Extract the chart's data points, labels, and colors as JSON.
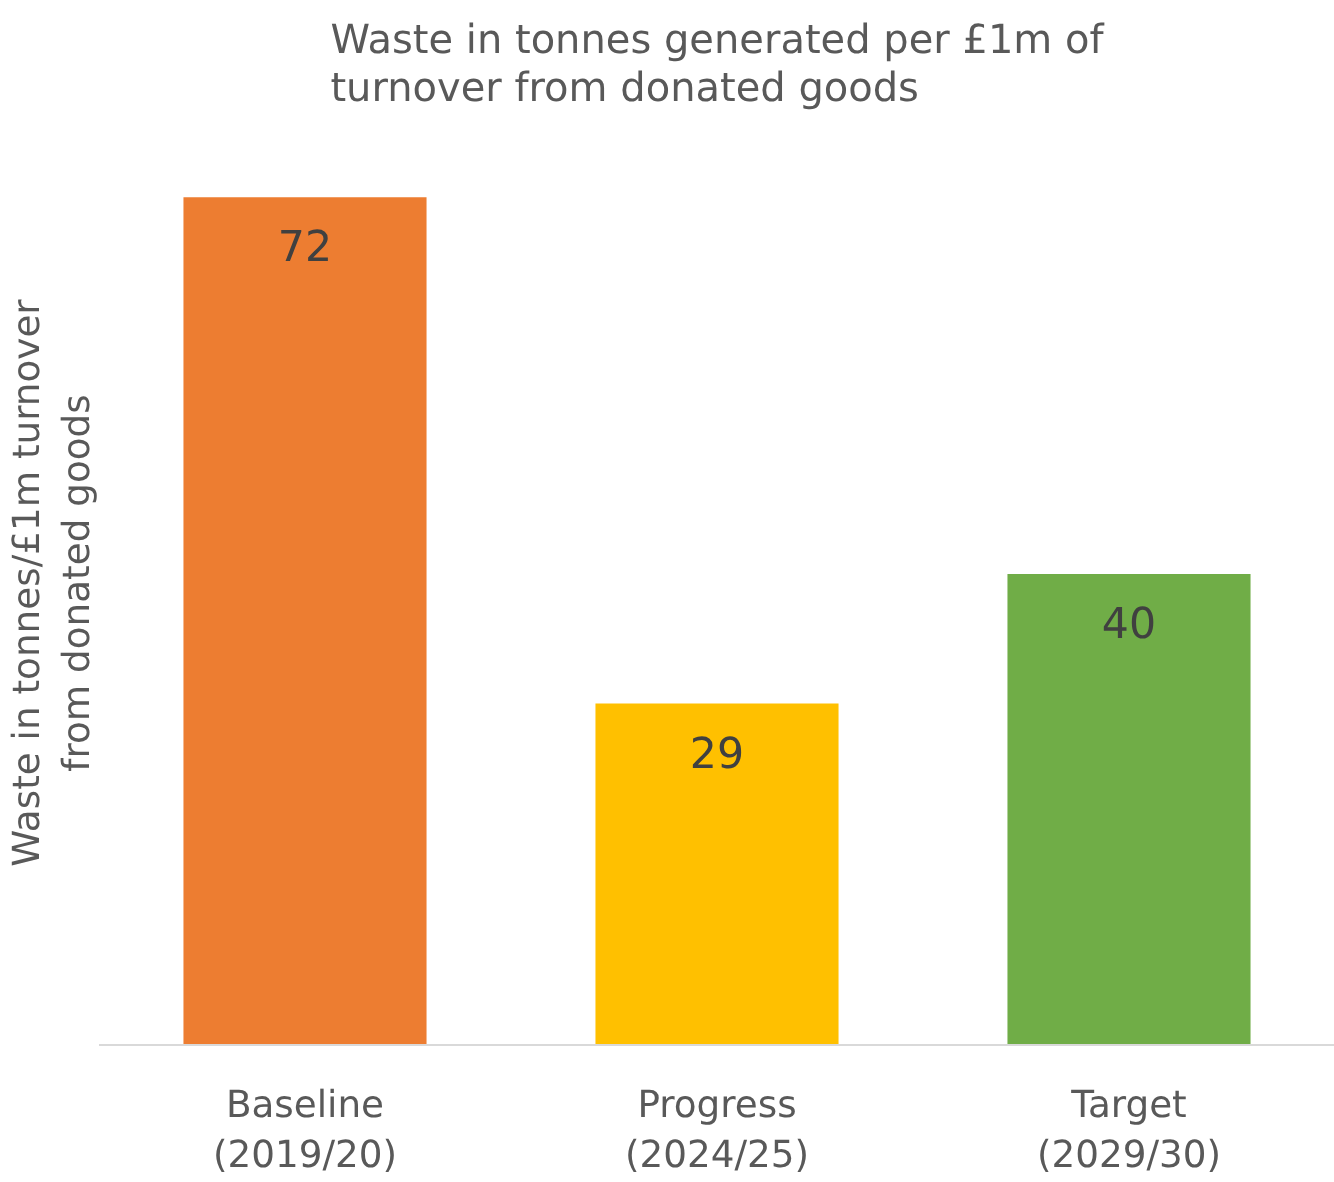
{
  "chart_data": {
    "type": "bar",
    "title": "Waste in tonnes generated per £1m of\nturnover from donated goods",
    "ylabel": "Waste in tonnes/£1m turnover\nfrom donated goods",
    "categories": [
      "Baseline\n(2019/20)",
      "Progress\n(2024/25)",
      "Target\n(2029/30)"
    ],
    "values": [
      72,
      29,
      40
    ],
    "colors": [
      "#ed7d31",
      "#ffc000",
      "#70ad47"
    ],
    "data_labels": true,
    "grid": false
  }
}
